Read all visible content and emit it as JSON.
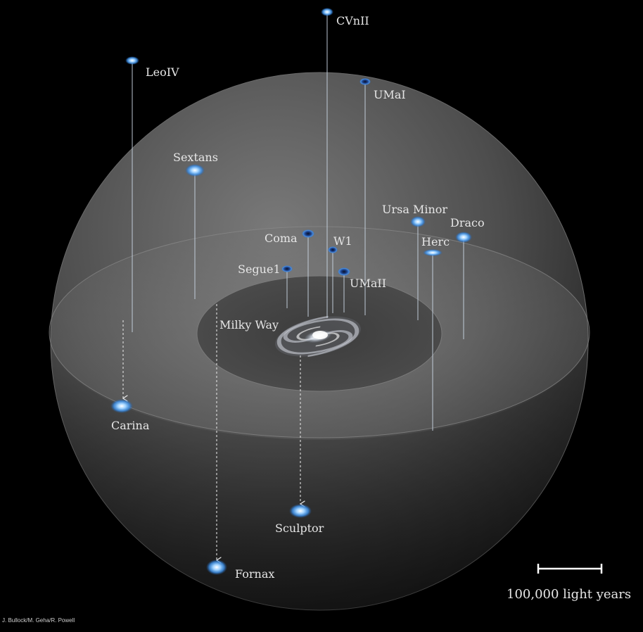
{
  "galaxies": [
    {
      "id": "cvnii",
      "label": "CVnII"
    },
    {
      "id": "leoiv",
      "label": "LeoIV"
    },
    {
      "id": "umai",
      "label": "UMaI"
    },
    {
      "id": "sextans",
      "label": "Sextans"
    },
    {
      "id": "ursa-minor",
      "label": "Ursa Minor"
    },
    {
      "id": "draco",
      "label": "Draco"
    },
    {
      "id": "coma",
      "label": "Coma"
    },
    {
      "id": "w1",
      "label": "W1"
    },
    {
      "id": "herc",
      "label": "Herc"
    },
    {
      "id": "segue1",
      "label": "Segue1"
    },
    {
      "id": "umaii",
      "label": "UMaII"
    },
    {
      "id": "carina",
      "label": "Carina"
    },
    {
      "id": "sculptor",
      "label": "Sculptor"
    },
    {
      "id": "fornax",
      "label": "Fornax"
    }
  ],
  "center": {
    "label": "Milky Way"
  },
  "scale_bar": {
    "label": "100,000 light years"
  },
  "credit": "J. Bullock/M. Geha/R. Powell",
  "colors": {
    "background": "#000000",
    "glow": "#4aa8ff",
    "sphere": "#5a5a5a"
  }
}
